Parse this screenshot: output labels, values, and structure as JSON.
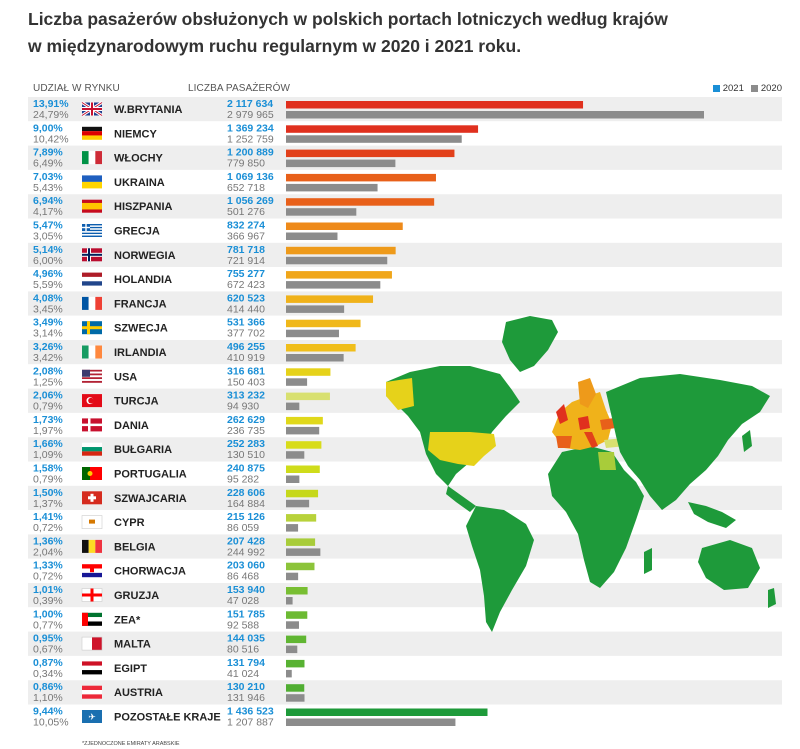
{
  "title_line1": "Liczba pasażerów obsłużonych w polskich portach lotniczych według krajów",
  "title_line2": "w międzynarodowym ruchu regularnym w 2020 i 2021 roku.",
  "header_share": "UDZIAŁ W RYNKU",
  "header_count": "LICZBA PASAŻERÓW",
  "footnote": "*ZJEDNOCZONE EMIRATY ARABSKIE",
  "colors": {
    "blue_text": "#1a8fd6",
    "gray_bar": "#8c8c8c",
    "row_a": "#eeeeee",
    "row_b": "#ffffff"
  },
  "chart_data": {
    "type": "bar",
    "orientation": "horizontal",
    "series": [
      {
        "name": "2021",
        "color": "#1a8fd6"
      },
      {
        "name": "2020",
        "color": "#8c8c8c"
      }
    ],
    "rows": [
      {
        "country": "W.BRYTANIA",
        "flag": "gb-flag",
        "share_2021": "13,91%",
        "share_2020": "24,79%",
        "label_2021": "2 117 634",
        "label_2020": "2 979 965",
        "v2021": 2117634,
        "v2020": 2979965,
        "bar_color": "#e0301e"
      },
      {
        "country": "NIEMCY",
        "flag": "de-flag",
        "share_2021": "9,00%",
        "share_2020": "10,42%",
        "label_2021": "1 369 234",
        "label_2020": "1 252 759",
        "v2021": 1369234,
        "v2020": 1252759,
        "bar_color": "#e0301e"
      },
      {
        "country": "WŁOCHY",
        "flag": "it-flag",
        "share_2021": "7,89%",
        "share_2020": "6,49%",
        "label_2021": "1 200 889",
        "label_2020": "779 850",
        "v2021": 1200889,
        "v2020": 779850,
        "bar_color": "#e2401a"
      },
      {
        "country": "UKRAINA",
        "flag": "ua-flag",
        "share_2021": "7,03%",
        "share_2020": "5,43%",
        "label_2021": "1 069 136",
        "label_2020": "652 718",
        "v2021": 1069136,
        "v2020": 652718,
        "bar_color": "#e8601a"
      },
      {
        "country": "HISZPANIA",
        "flag": "es-flag",
        "share_2021": "6,94%",
        "share_2020": "4,17%",
        "label_2021": "1 056 269",
        "label_2020": "501 276",
        "v2021": 1056269,
        "v2020": 501276,
        "bar_color": "#e8601a"
      },
      {
        "country": "GRECJA",
        "flag": "gr-flag",
        "share_2021": "5,47%",
        "share_2020": "3,05%",
        "label_2021": "832 274",
        "label_2020": "366 967",
        "v2021": 832274,
        "v2020": 366967,
        "bar_color": "#ee8a1a"
      },
      {
        "country": "NORWEGIA",
        "flag": "no-flag",
        "share_2021": "5,14%",
        "share_2020": "6,00%",
        "label_2021": "781 718",
        "label_2020": "721 914",
        "v2021": 781718,
        "v2020": 721914,
        "bar_color": "#ee9a1a"
      },
      {
        "country": "HOLANDIA",
        "flag": "nl-flag",
        "share_2021": "4,96%",
        "share_2020": "5,59%",
        "label_2021": "755 277",
        "label_2020": "672 423",
        "v2021": 755277,
        "v2020": 672423,
        "bar_color": "#f0a61a"
      },
      {
        "country": "FRANCJA",
        "flag": "fr-flag",
        "share_2021": "4,08%",
        "share_2020": "3,45%",
        "label_2021": "620 523",
        "label_2020": "414 440",
        "v2021": 620523,
        "v2020": 414440,
        "bar_color": "#f0b21a"
      },
      {
        "country": "SZWECJA",
        "flag": "se-flag",
        "share_2021": "3,49%",
        "share_2020": "3,14%",
        "label_2021": "531 366",
        "label_2020": "377 702",
        "v2021": 531366,
        "v2020": 377702,
        "bar_color": "#f0b81a"
      },
      {
        "country": "IRLANDIA",
        "flag": "ie-flag",
        "share_2021": "3,26%",
        "share_2020": "3,42%",
        "label_2021": "496 255",
        "label_2020": "410 919",
        "v2021": 496255,
        "v2020": 410919,
        "bar_color": "#f0be1a"
      },
      {
        "country": "USA",
        "flag": "us-flag",
        "share_2021": "2,08%",
        "share_2020": "1,25%",
        "label_2021": "316 681",
        "label_2020": "150 403",
        "v2021": 316681,
        "v2020": 150403,
        "bar_color": "#e6d21a"
      },
      {
        "country": "TURCJA",
        "flag": "tr-flag",
        "share_2021": "2,06%",
        "share_2020": "0,79%",
        "label_2021": "313 232",
        "label_2020": "94 930",
        "v2021": 313232,
        "v2020": 94930,
        "bar_color": "#d8e070"
      },
      {
        "country": "DANIA",
        "flag": "dk-flag",
        "share_2021": "1,73%",
        "share_2020": "1,97%",
        "label_2021": "262 629",
        "label_2020": "236 735",
        "v2021": 262629,
        "v2020": 236735,
        "bar_color": "#e0d81a"
      },
      {
        "country": "BUŁGARIA",
        "flag": "bg-flag",
        "share_2021": "1,66%",
        "share_2020": "1,09%",
        "label_2021": "252 283",
        "label_2020": "130 510",
        "v2021": 252283,
        "v2020": 130510,
        "bar_color": "#d8dc1a"
      },
      {
        "country": "PORTUGALIA",
        "flag": "pt-flag",
        "share_2021": "1,58%",
        "share_2020": "0,79%",
        "label_2021": "240 875",
        "label_2020": "95 282",
        "v2021": 240875,
        "v2020": 95282,
        "bar_color": "#cfdc1a"
      },
      {
        "country": "SZWAJCARIA",
        "flag": "ch-flag",
        "share_2021": "1,50%",
        "share_2020": "1,37%",
        "label_2021": "228 606",
        "label_2020": "164 884",
        "v2021": 228606,
        "v2020": 164884,
        "bar_color": "#c6d81a"
      },
      {
        "country": "CYPR",
        "flag": "cy-flag",
        "share_2021": "1,41%",
        "share_2020": "0,72%",
        "label_2021": "215 126",
        "label_2020": "86 059",
        "v2021": 215126,
        "v2020": 86059,
        "bar_color": "#b8d23a"
      },
      {
        "country": "BELGIA",
        "flag": "be-flag",
        "share_2021": "1,36%",
        "share_2020": "2,04%",
        "label_2021": "207 428",
        "label_2020": "244 992",
        "v2021": 207428,
        "v2020": 244992,
        "bar_color": "#a8cc3a"
      },
      {
        "country": "CHORWACJA",
        "flag": "hr-flag",
        "share_2021": "1,33%",
        "share_2020": "0,72%",
        "label_2021": "203 060",
        "label_2020": "86 468",
        "v2021": 203060,
        "v2020": 86468,
        "bar_color": "#8cc43a"
      },
      {
        "country": "GRUZJA",
        "flag": "ge-flag",
        "share_2021": "1,01%",
        "share_2020": "0,39%",
        "label_2021": "153 940",
        "label_2020": "47 028",
        "v2021": 153940,
        "v2020": 47028,
        "bar_color": "#78be32"
      },
      {
        "country": "ZEA*",
        "flag": "ae-flag",
        "share_2021": "1,00%",
        "share_2020": "0,77%",
        "label_2021": "151 785",
        "label_2020": "92 588",
        "v2021": 151785,
        "v2020": 92588,
        "bar_color": "#6cba32"
      },
      {
        "country": "MALTA",
        "flag": "mt-flag",
        "share_2021": "0,95%",
        "share_2020": "0,67%",
        "label_2021": "144 035",
        "label_2020": "80 516",
        "v2021": 144035,
        "v2020": 80516,
        "bar_color": "#60b632"
      },
      {
        "country": "EGIPT",
        "flag": "eg-flag",
        "share_2021": "0,87%",
        "share_2020": "0,34%",
        "label_2021": "131 794",
        "label_2020": "41 024",
        "v2021": 131794,
        "v2020": 41024,
        "bar_color": "#58b232"
      },
      {
        "country": "AUSTRIA",
        "flag": "at-flag",
        "share_2021": "0,86%",
        "share_2020": "1,10%",
        "label_2021": "130 210",
        "label_2020": "131 946",
        "v2021": 130210,
        "v2020": 131946,
        "bar_color": "#50ae32"
      },
      {
        "country": "POZOSTAŁE KRAJE",
        "flag": "plane-icon",
        "share_2021": "9,44%",
        "share_2020": "10,05%",
        "label_2021": "1 436 523",
        "label_2020": "1 207 887",
        "v2021": 1436523,
        "v2020": 1207887,
        "bar_color": "#1e9a3a"
      }
    ]
  }
}
